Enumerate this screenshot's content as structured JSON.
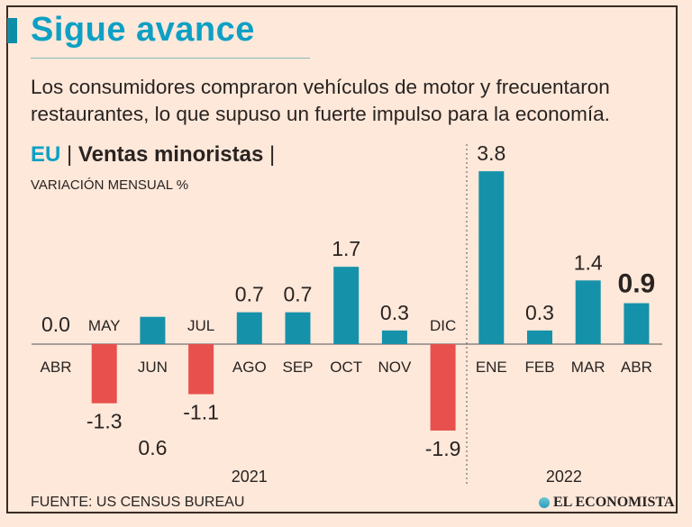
{
  "header": {
    "title": "Sigue avance",
    "subtitle": "Los consumidores compraron vehículos de motor y frecuentaron restaurantes, lo que supuso un fuerte impulso para la economía."
  },
  "chart_header": {
    "country": "EU",
    "separator": "|",
    "name": "Ventas minoristas",
    "unit": "VARIACIÓN MENSUAL %"
  },
  "footer": {
    "source": "FUENTE: US CENSUS BUREAU",
    "logo": "EL ECONOMISTA"
  },
  "colors": {
    "positive": "#1691aa",
    "negative": "#e8504d",
    "title": "#0ea0c4"
  },
  "chart_data": {
    "type": "bar",
    "title": "Ventas minoristas",
    "ylabel": "Variación mensual %",
    "categories": [
      "ABR",
      "MAY",
      "JUN",
      "JUL",
      "AGO",
      "SEP",
      "OCT",
      "NOV",
      "DIC",
      "ENE",
      "FEB",
      "MAR",
      "ABR"
    ],
    "years": [
      {
        "label": "2021",
        "from": 0,
        "to": 8
      },
      {
        "label": "2022",
        "from": 9,
        "to": 12
      }
    ],
    "values": [
      0.0,
      -1.3,
      0.6,
      -1.1,
      0.7,
      0.7,
      1.7,
      0.3,
      -1.9,
      3.8,
      0.3,
      1.4,
      0.9
    ],
    "value_labels": [
      "0.0",
      "-1.3",
      "0.6",
      "-1.1",
      "0.7",
      "0.7",
      "1.7",
      "0.3",
      "-1.9",
      "3.8",
      "0.3",
      "1.4",
      "0.9"
    ],
    "highlight_last": true,
    "grid": false
  }
}
